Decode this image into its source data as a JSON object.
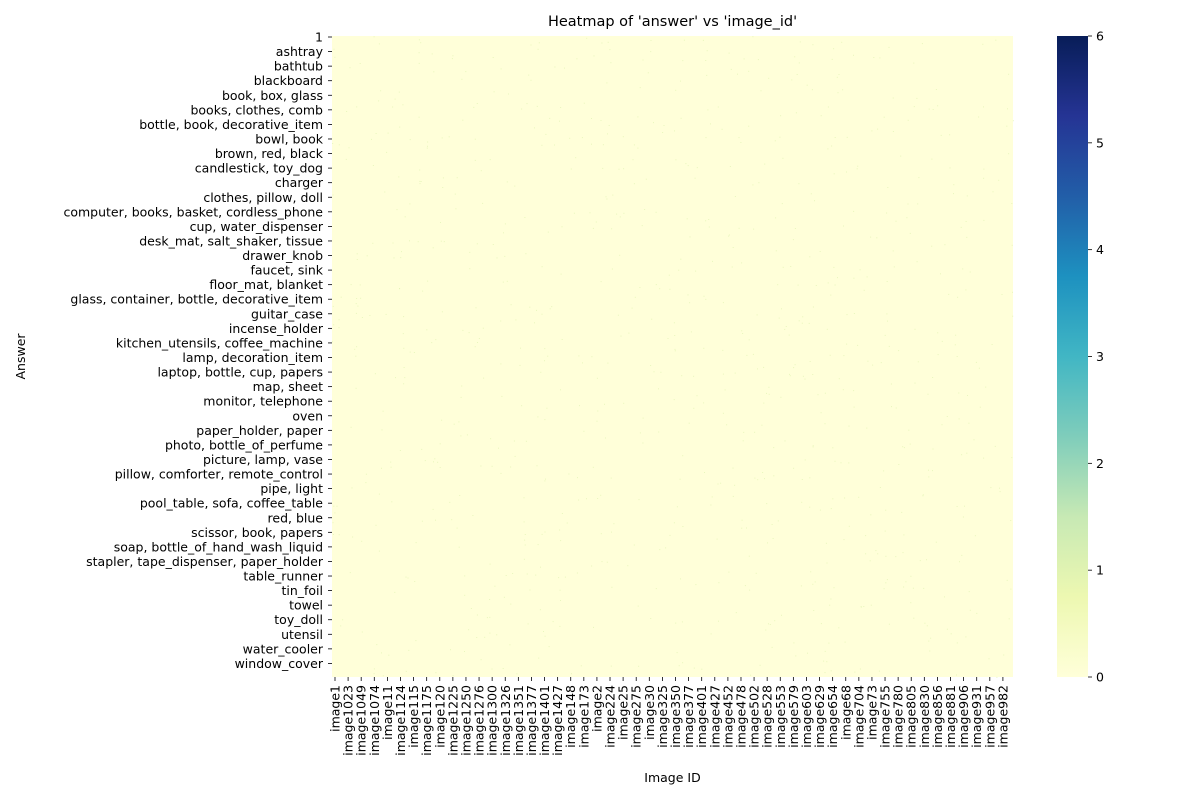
{
  "chart_data": {
    "type": "heatmap",
    "title": "Heatmap of 'answer' vs 'image_id'",
    "xlabel": "Image ID",
    "ylabel": "Answer",
    "y_tick_labels": [
      "1",
      "ashtray",
      "bathtub",
      "blackboard",
      "book, box, glass",
      "books, clothes, comb",
      "bottle, book, decorative_item",
      "bowl, book",
      "brown, red, black",
      "candlestick, toy_dog",
      "charger",
      "clothes, pillow, doll",
      "computer, books, basket, cordless_phone",
      "cup, water_dispenser",
      "desk_mat, salt_shaker, tissue",
      "drawer_knob",
      "faucet, sink",
      "floor_mat, blanket",
      "glass, container, bottle, decorative_item",
      "guitar_case",
      "incense_holder",
      "kitchen_utensils, coffee_machine",
      "lamp, decoration_item",
      "laptop, bottle, cup, papers",
      "map, sheet",
      "monitor, telephone",
      "oven",
      "paper_holder, paper",
      "photo, bottle_of_perfume",
      "picture, lamp, vase",
      "pillow, comforter, remote_control",
      "pipe, light",
      "pool_table, sofa, coffee_table",
      "red, blue",
      "scissor, book, papers",
      "soap, bottle_of_hand_wash_liquid",
      "stapler, tape_dispenser, paper_holder",
      "table_runner",
      "tin_foil",
      "towel",
      "toy_doll",
      "utensil",
      "water_cooler",
      "window_cover"
    ],
    "x_tick_labels": [
      "image1",
      "image1023",
      "image1049",
      "image1074",
      "image11",
      "image1124",
      "image115",
      "image1175",
      "image120",
      "image1225",
      "image1250",
      "image1276",
      "image1300",
      "image1326",
      "image1351",
      "image1377",
      "image1401",
      "image1427",
      "image148",
      "image173",
      "image2",
      "image224",
      "image25",
      "image275",
      "image30",
      "image325",
      "image350",
      "image377",
      "image401",
      "image427",
      "image452",
      "image478",
      "image502",
      "image528",
      "image553",
      "image579",
      "image603",
      "image629",
      "image654",
      "image68",
      "image704",
      "image73",
      "image755",
      "image780",
      "image805",
      "image830",
      "image856",
      "image881",
      "image906",
      "image931",
      "image957",
      "image982"
    ],
    "value_range": [
      0,
      6
    ],
    "colorbar_ticks": [
      "0",
      "1",
      "2",
      "3",
      "4",
      "5",
      "6"
    ],
    "colormap": "YlGnBu",
    "colormap_stops": [
      "#ffffd9",
      "#edf8b1",
      "#c7e9b4",
      "#7fcdbb",
      "#41b6c4",
      "#1d91c0",
      "#225ea8",
      "#253494",
      "#081d58"
    ],
    "background_cell_value": 0,
    "nonzero_cells_value": 1,
    "note_visible": "almost all cells are 0; sparse cells of value 1"
  }
}
